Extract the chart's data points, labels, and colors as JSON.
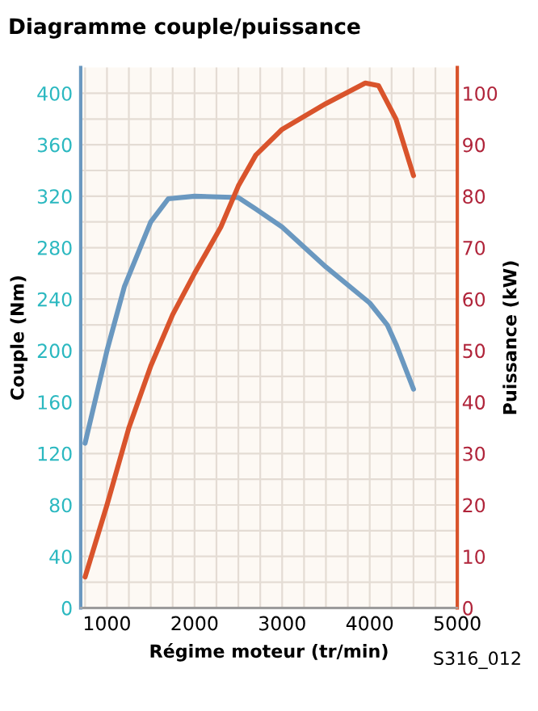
{
  "chart_data": {
    "type": "line",
    "title": "Diagramme couple/puissance",
    "xlabel": "Régime moteur (tr/min)",
    "ylabel": "Couple (Nm)",
    "y2label": "Puissance (kW)",
    "annotations": [
      "S316_012"
    ],
    "xlim": [
      700,
      5000
    ],
    "xticks": [
      1000,
      2000,
      3000,
      4000,
      5000
    ],
    "ylim": [
      0,
      420
    ],
    "yticks": [
      0,
      40,
      80,
      120,
      160,
      200,
      240,
      280,
      320,
      360,
      400
    ],
    "y2lim": [
      0,
      105
    ],
    "y2ticks": [
      0,
      10,
      20,
      30,
      40,
      50,
      60,
      70,
      80,
      90,
      100
    ],
    "grid": true,
    "marker": "none",
    "line_style": "solid",
    "legend": false,
    "series": [
      {
        "color": "#6a98c0",
        "x": [
          750,
          1000,
          1200,
          1500,
          1700,
          2000,
          2500,
          2700,
          3000,
          3500,
          4000,
          4200,
          4300,
          4500
        ],
        "values": [
          128,
          200,
          250,
          300,
          318,
          320,
          319,
          310,
          296,
          265,
          237,
          220,
          205,
          170
        ]
      },
      {
        "color": "#d9542c",
        "axis": "y2",
        "x": [
          750,
          1000,
          1250,
          1500,
          1750,
          2000,
          2300,
          2500,
          2700,
          3000,
          3500,
          3950,
          4100,
          4300,
          4500
        ],
        "values": [
          6,
          20,
          35,
          47,
          57,
          65,
          74,
          82,
          88,
          93,
          98,
          102,
          101.5,
          95,
          84
        ]
      }
    ]
  }
}
